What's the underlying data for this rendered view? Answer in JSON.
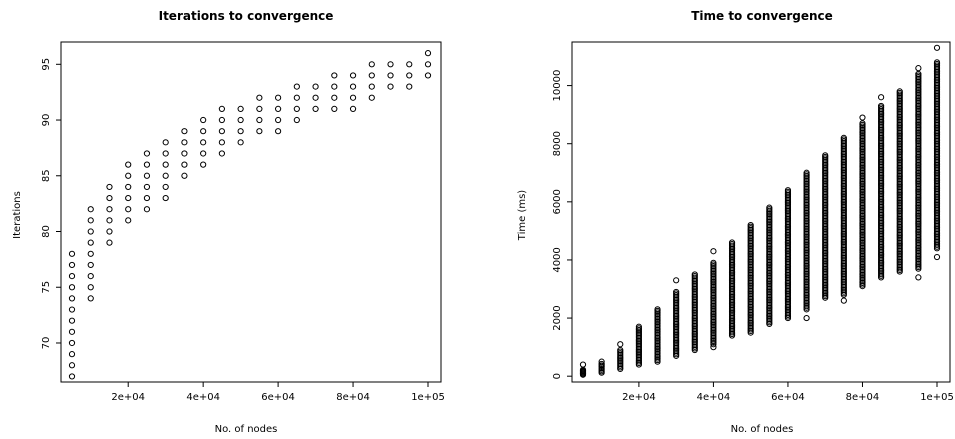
{
  "chart_data": [
    {
      "type": "scatter",
      "title": "Iterations to convergence",
      "xlabel": "No. of nodes",
      "ylabel": "Iterations",
      "xlim": [
        0,
        100000
      ],
      "ylim": [
        66.5,
        97
      ],
      "xticks": [
        20000,
        40000,
        60000,
        80000,
        100000
      ],
      "xtick_labels": [
        "2e+04",
        "4e+04",
        "6e+04",
        "8e+04",
        "1e+05"
      ],
      "yticks": [
        70,
        75,
        80,
        85,
        90,
        95
      ],
      "ytick_labels": [
        "70",
        "75",
        "80",
        "85",
        "90",
        "95"
      ],
      "grid": false,
      "groups": [
        {
          "x": 5000,
          "y": [
            67,
            68,
            69,
            70,
            71,
            72,
            73,
            74,
            75,
            76,
            77,
            78
          ]
        },
        {
          "x": 10000,
          "y": [
            74,
            75,
            76,
            77,
            78,
            79,
            80,
            81,
            82
          ]
        },
        {
          "x": 15000,
          "y": [
            79,
            80,
            81,
            82,
            83,
            84
          ]
        },
        {
          "x": 20000,
          "y": [
            81,
            82,
            83,
            84,
            85,
            86
          ]
        },
        {
          "x": 25000,
          "y": [
            82,
            83,
            84,
            85,
            86,
            87
          ]
        },
        {
          "x": 30000,
          "y": [
            83,
            84,
            85,
            86,
            87,
            88
          ]
        },
        {
          "x": 35000,
          "y": [
            85,
            86,
            87,
            88,
            89
          ]
        },
        {
          "x": 40000,
          "y": [
            86,
            87,
            88,
            89,
            90
          ]
        },
        {
          "x": 45000,
          "y": [
            87,
            88,
            89,
            90,
            91
          ]
        },
        {
          "x": 50000,
          "y": [
            88,
            89,
            90,
            91
          ]
        },
        {
          "x": 55000,
          "y": [
            89,
            90,
            91,
            92
          ]
        },
        {
          "x": 60000,
          "y": [
            89,
            90,
            91,
            92
          ]
        },
        {
          "x": 65000,
          "y": [
            90,
            91,
            92,
            93
          ]
        },
        {
          "x": 70000,
          "y": [
            91,
            92,
            93
          ]
        },
        {
          "x": 75000,
          "y": [
            91,
            92,
            93,
            94
          ]
        },
        {
          "x": 80000,
          "y": [
            91,
            92,
            93,
            94
          ]
        },
        {
          "x": 85000,
          "y": [
            92,
            93,
            94,
            95
          ]
        },
        {
          "x": 90000,
          "y": [
            93,
            94,
            95
          ]
        },
        {
          "x": 95000,
          "y": [
            93,
            94,
            95
          ]
        },
        {
          "x": 100000,
          "y": [
            94,
            95,
            96
          ]
        }
      ]
    },
    {
      "type": "scatter",
      "title": "Time to convergence",
      "xlabel": "No. of nodes",
      "ylabel": "Time (ms)",
      "xlim": [
        0,
        100000
      ],
      "ylim": [
        -200,
        11500
      ],
      "xticks": [
        20000,
        40000,
        60000,
        80000,
        100000
      ],
      "xtick_labels": [
        "2e+04",
        "4e+04",
        "6e+04",
        "8e+04",
        "1e+05"
      ],
      "yticks": [
        0,
        2000,
        4000,
        6000,
        8000,
        10000
      ],
      "ytick_labels": [
        "0",
        "2000",
        "4000",
        "6000",
        "8000",
        "10000"
      ],
      "grid": false,
      "groups": [
        {
          "x": 5000,
          "min": 50,
          "max": 220,
          "outliers": [
            400
          ]
        },
        {
          "x": 10000,
          "min": 120,
          "max": 420,
          "outliers": [
            500
          ]
        },
        {
          "x": 15000,
          "min": 250,
          "max": 900,
          "outliers": [
            1100
          ]
        },
        {
          "x": 20000,
          "min": 400,
          "max": 1700,
          "outliers": []
        },
        {
          "x": 25000,
          "min": 500,
          "max": 2300,
          "outliers": []
        },
        {
          "x": 30000,
          "min": 700,
          "max": 2900,
          "outliers": [
            3300
          ]
        },
        {
          "x": 35000,
          "min": 900,
          "max": 3500,
          "outliers": []
        },
        {
          "x": 40000,
          "min": 1100,
          "max": 3900,
          "outliers": [
            1000,
            4300
          ]
        },
        {
          "x": 45000,
          "min": 1400,
          "max": 4600,
          "outliers": []
        },
        {
          "x": 50000,
          "min": 1500,
          "max": 5200,
          "outliers": []
        },
        {
          "x": 55000,
          "min": 1800,
          "max": 5800,
          "outliers": []
        },
        {
          "x": 60000,
          "min": 2000,
          "max": 6400,
          "outliers": []
        },
        {
          "x": 65000,
          "min": 2300,
          "max": 7000,
          "outliers": [
            2000
          ]
        },
        {
          "x": 70000,
          "min": 2700,
          "max": 7600,
          "outliers": []
        },
        {
          "x": 75000,
          "min": 2800,
          "max": 8200,
          "outliers": [
            2600
          ]
        },
        {
          "x": 80000,
          "min": 3100,
          "max": 8700,
          "outliers": [
            8900
          ]
        },
        {
          "x": 85000,
          "min": 3400,
          "max": 9300,
          "outliers": [
            9600
          ]
        },
        {
          "x": 90000,
          "min": 3600,
          "max": 9800,
          "outliers": []
        },
        {
          "x": 95000,
          "min": 3700,
          "max": 10400,
          "outliers": [
            3400,
            10600
          ]
        },
        {
          "x": 100000,
          "min": 4400,
          "max": 10800,
          "outliers": [
            4100,
            11300
          ]
        }
      ]
    }
  ]
}
